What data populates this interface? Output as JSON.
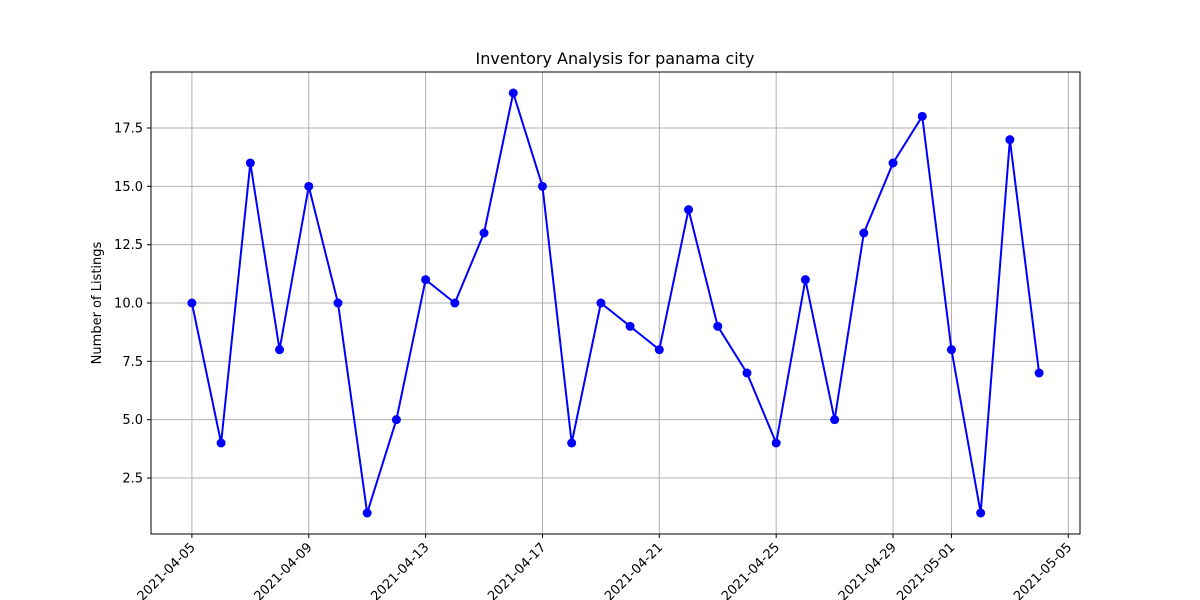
{
  "chart_data": {
    "type": "line",
    "title": "Inventory Analysis for panama city",
    "xlabel": "",
    "ylabel": "Number of Listings",
    "x": [
      "2021-04-05",
      "2021-04-06",
      "2021-04-07",
      "2021-04-08",
      "2021-04-09",
      "2021-04-10",
      "2021-04-11",
      "2021-04-12",
      "2021-04-13",
      "2021-04-14",
      "2021-04-15",
      "2021-04-16",
      "2021-04-17",
      "2021-04-18",
      "2021-04-19",
      "2021-04-20",
      "2021-04-21",
      "2021-04-22",
      "2021-04-23",
      "2021-04-24",
      "2021-04-25",
      "2021-04-26",
      "2021-04-27",
      "2021-04-28",
      "2021-04-29",
      "2021-04-30",
      "2021-05-01",
      "2021-05-02",
      "2021-05-03",
      "2021-05-04"
    ],
    "series": [
      {
        "values": [
          10,
          4,
          16,
          8,
          15,
          10,
          1,
          5,
          11,
          10,
          13,
          19,
          15,
          4,
          10,
          9,
          8,
          14,
          9,
          7,
          4,
          11,
          5,
          13,
          16,
          18,
          8,
          1,
          17,
          7
        ],
        "color": "#0000ff",
        "marker": "circle"
      }
    ],
    "xlim": [
      "2021-04-03T14:24",
      "2021-05-05T09:36"
    ],
    "ylim": [
      0.1,
      19.9
    ],
    "xticks": [
      "2021-04-05",
      "2021-04-09",
      "2021-04-13",
      "2021-04-17",
      "2021-04-21",
      "2021-04-25",
      "2021-04-29",
      "2021-05-01",
      "2021-05-05"
    ],
    "yticks": [
      2.5,
      5.0,
      7.5,
      10.0,
      12.5,
      15.0,
      17.5
    ],
    "ytick_labels": [
      "2.5",
      "5.0",
      "7.5",
      "10.0",
      "12.5",
      "15.0",
      "17.5"
    ],
    "grid": true,
    "legend": "none"
  }
}
